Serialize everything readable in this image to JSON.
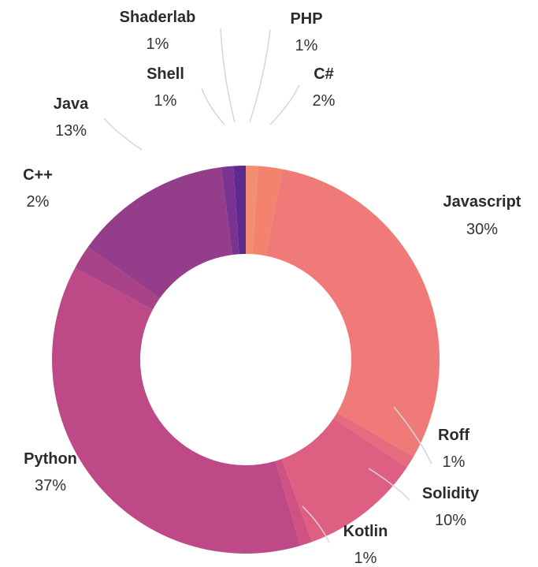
{
  "chart_data": {
    "type": "pie",
    "variant": "donut",
    "start": "top",
    "direction": "clockwise",
    "legend": "none",
    "title": "",
    "slices": [
      {
        "label": "PHP",
        "value": 1,
        "percent_label": "1%",
        "color": "#f48e72"
      },
      {
        "label": "C#",
        "value": 2,
        "percent_label": "2%",
        "color": "#f3826f"
      },
      {
        "label": "Javascript",
        "value": 30,
        "percent_label": "30%",
        "color": "#ef7a78"
      },
      {
        "label": "Roff",
        "value": 1,
        "percent_label": "1%",
        "color": "#e56b7e"
      },
      {
        "label": "Solidity",
        "value": 10,
        "percent_label": "10%",
        "color": "#df5f82"
      },
      {
        "label": "Kotlin",
        "value": 1,
        "percent_label": "1%",
        "color": "#cf5282"
      },
      {
        "label": "Python",
        "value": 37,
        "percent_label": "37%",
        "color": "#bd4a87"
      },
      {
        "label": "C++",
        "value": 2,
        "percent_label": "2%",
        "color": "#a94387"
      },
      {
        "label": "Java",
        "value": 13,
        "percent_label": "13%",
        "color": "#943d8a"
      },
      {
        "label": "Shell",
        "value": 1,
        "percent_label": "1%",
        "color": "#7a3390"
      },
      {
        "label": "Shaderlab",
        "value": 1,
        "percent_label": "1%",
        "color": "#5d2b8f"
      }
    ]
  }
}
